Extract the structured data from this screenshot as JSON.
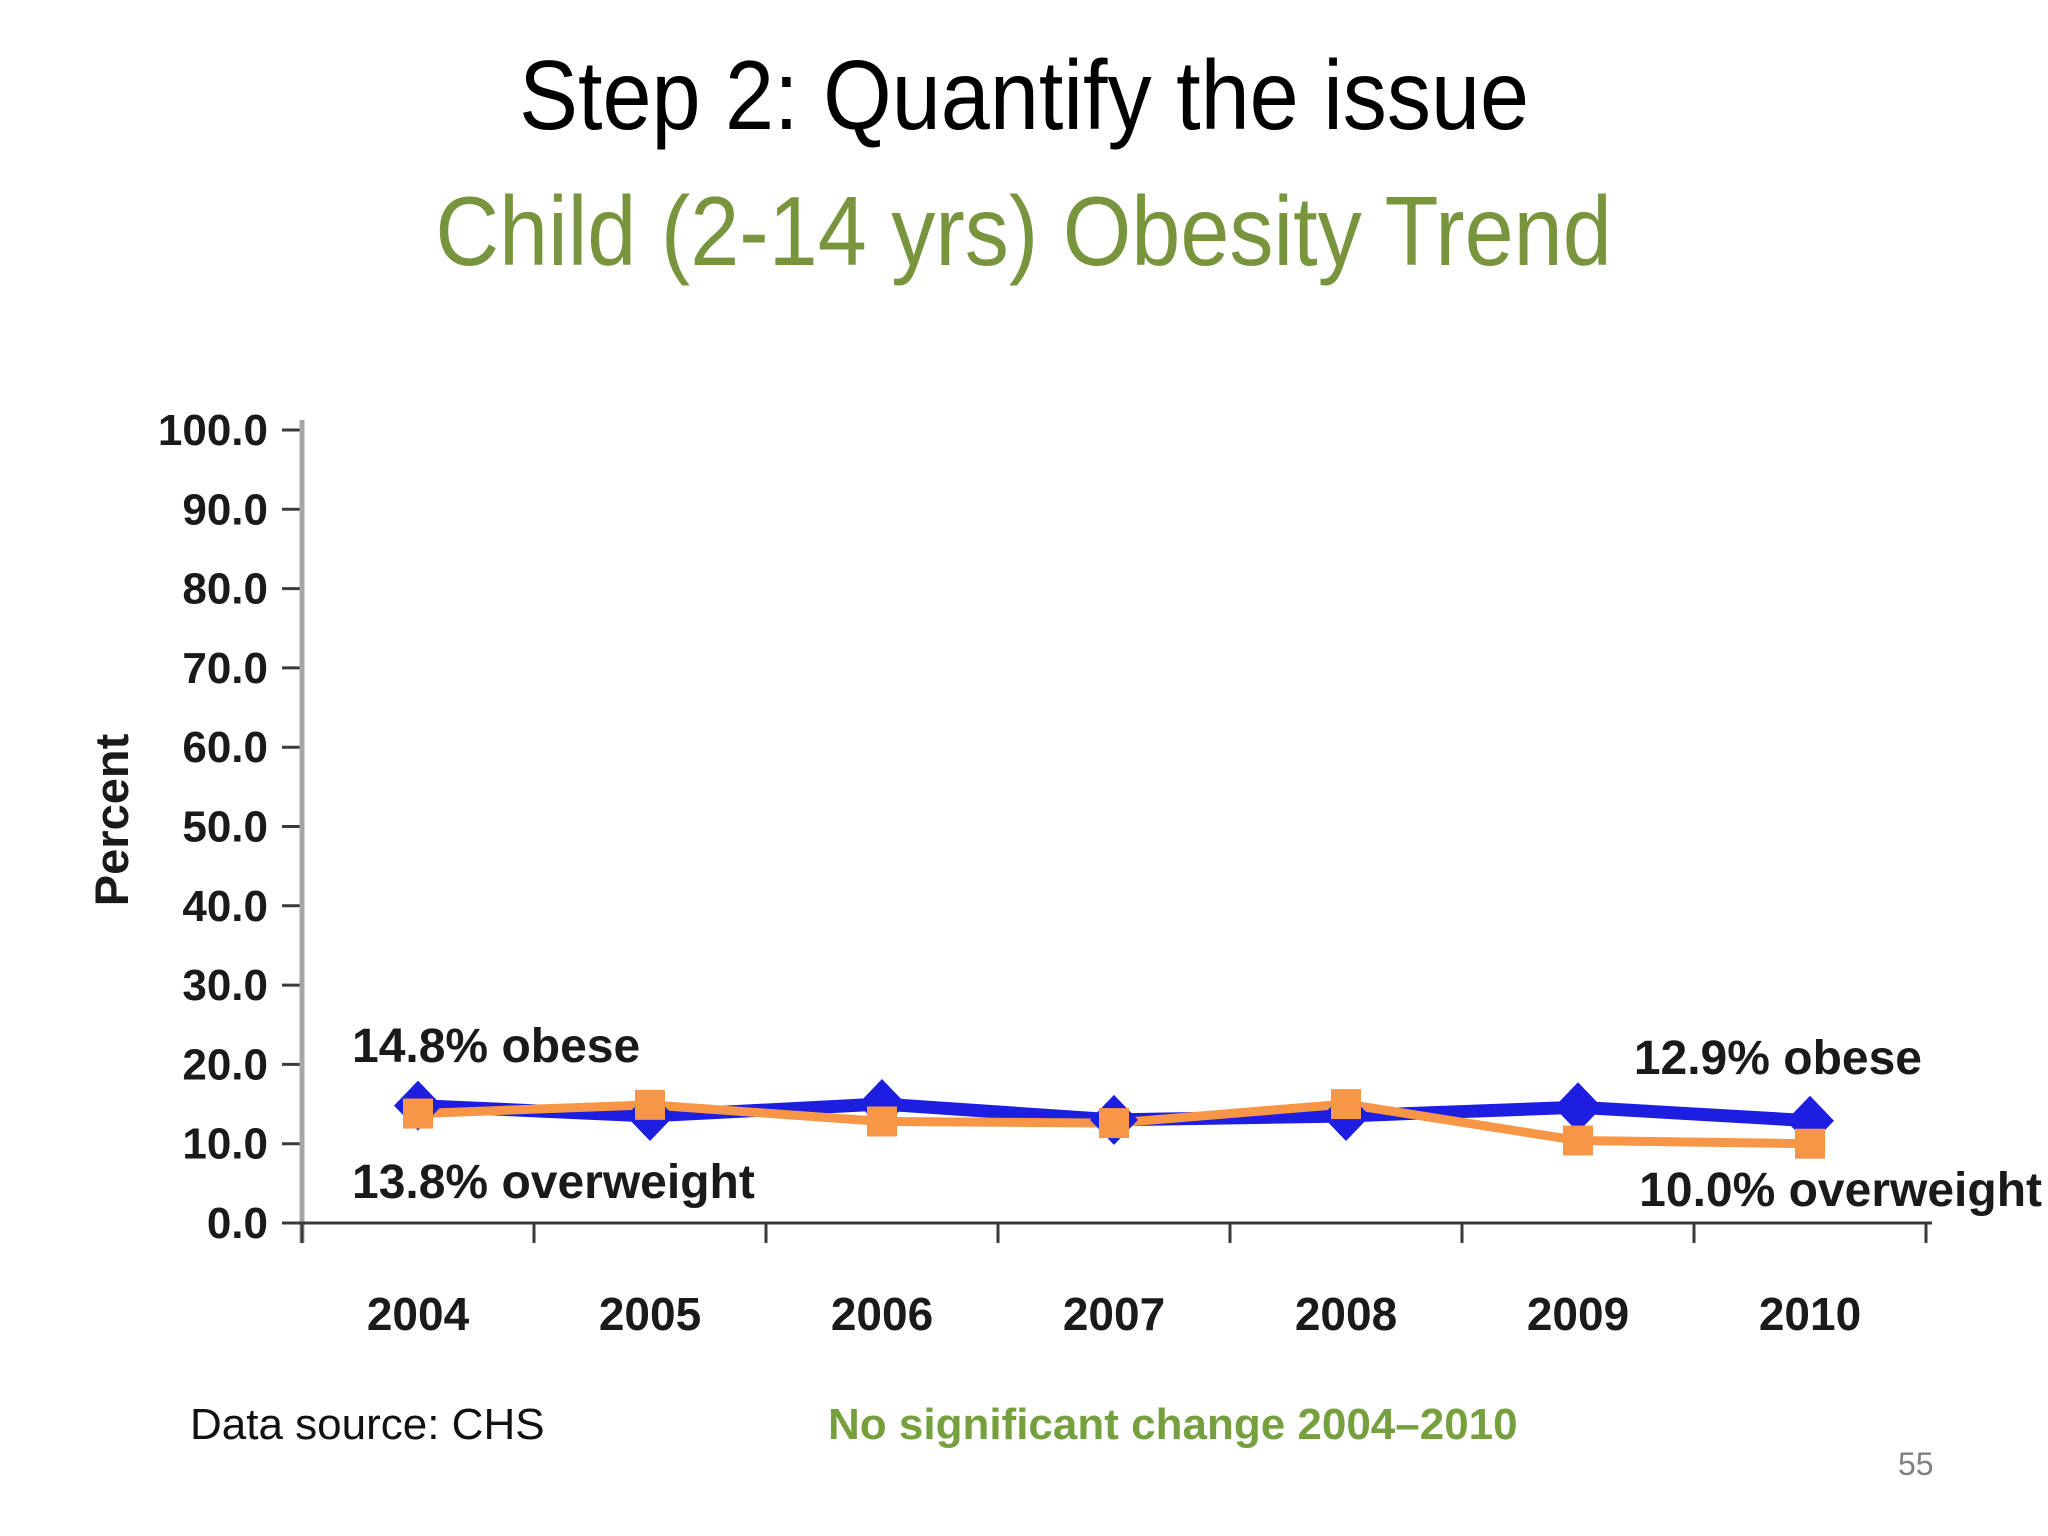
{
  "header": {
    "title": "Step 2: Quantify the issue",
    "subtitle": "Child (2-14 yrs) Obesity Trend"
  },
  "chart_data": {
    "type": "line",
    "title": "Child (2-14 yrs) Obesity Trend",
    "xlabel": "",
    "ylabel": "Percent",
    "ylim": [
      0,
      100
    ],
    "ytick_step": 10,
    "ytick_format_decimals": 1,
    "grid": false,
    "legend_position": "none",
    "categories": [
      "2004",
      "2005",
      "2006",
      "2007",
      "2008",
      "2009",
      "2010"
    ],
    "series": [
      {
        "name": "obese",
        "color": "#1E1EE0",
        "marker": "diamond",
        "line_width": 13,
        "values": [
          14.8,
          13.5,
          15.0,
          13.0,
          13.5,
          14.6,
          12.9
        ]
      },
      {
        "name": "overweight",
        "color": "#F79646",
        "marker": "square",
        "line_width": 9,
        "values": [
          13.8,
          14.9,
          12.8,
          12.6,
          15.0,
          10.4,
          10.0
        ]
      }
    ],
    "annotations": [
      {
        "text": "14.8% obese",
        "anchor": "2004-obese"
      },
      {
        "text": "13.8% overweight",
        "anchor": "2004-overweight"
      },
      {
        "text": "12.9% obese",
        "anchor": "2010-obese"
      },
      {
        "text": "10.0% overweight",
        "anchor": "2010-overweight"
      }
    ]
  },
  "footer": {
    "data_source": "Data source: CHS",
    "note": "No significant change 2004–2010",
    "page_number": "55"
  },
  "colors": {
    "subtitle_green": "#78953E",
    "note_green": "#76A03E",
    "obese_blue": "#1E1EE0",
    "overweight_orange": "#F79646",
    "y_axis_gray": "#A6A6A6",
    "axis_dark": "#3A3A3A",
    "page_number_gray": "#808080"
  }
}
